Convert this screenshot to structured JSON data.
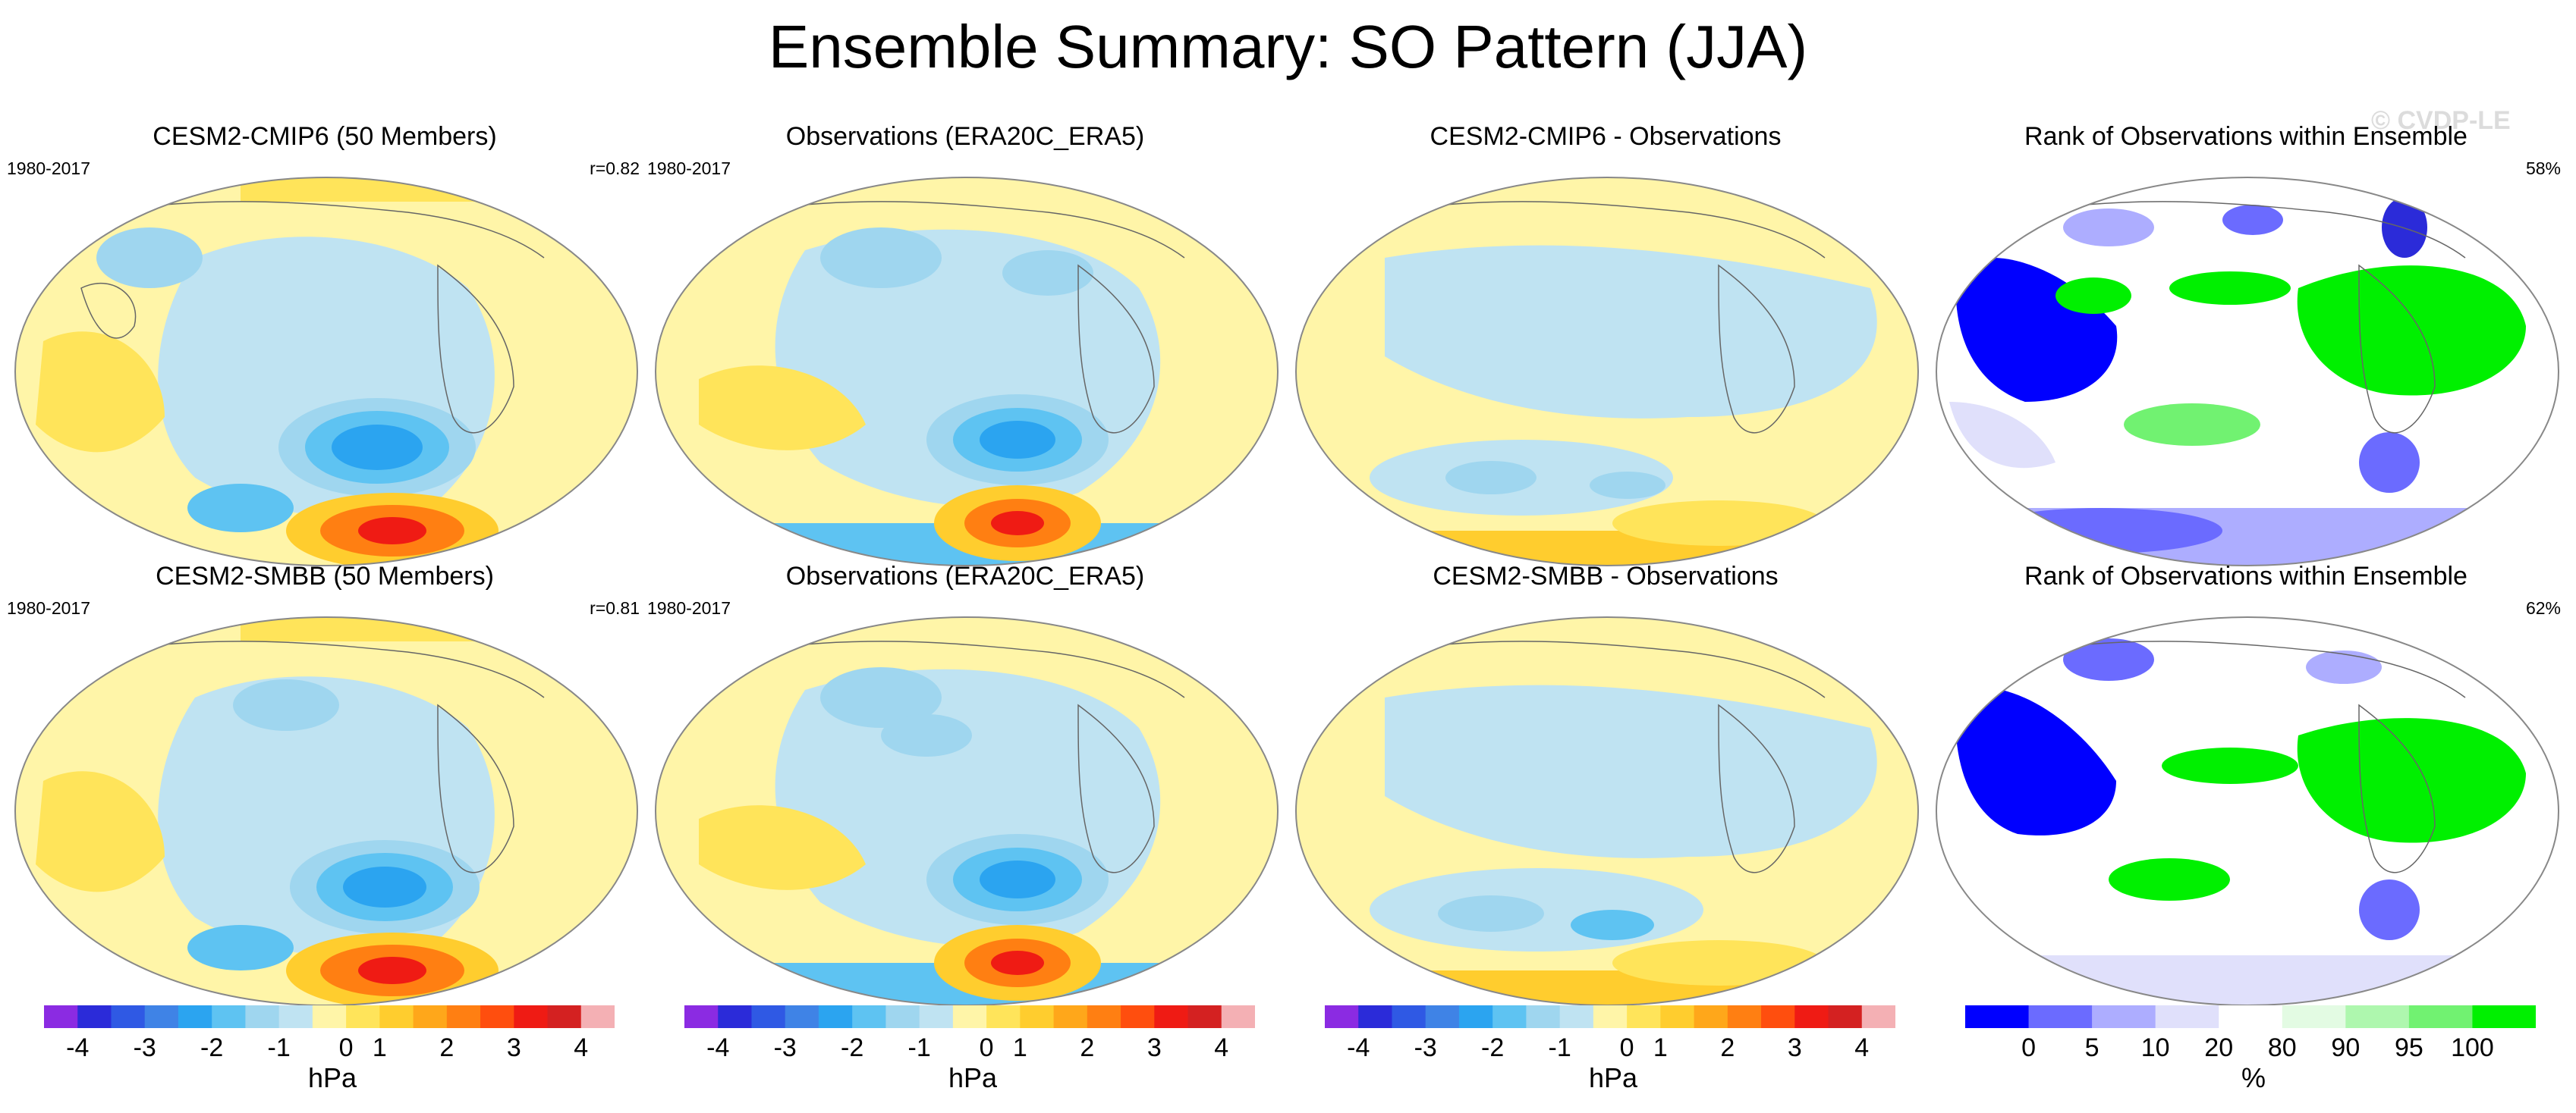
{
  "title": "Ensemble Summary: SO Pattern (JJA)",
  "watermark": "© CVDP-LE",
  "panels": [
    {
      "title": "CESM2-CMIP6 (50 Members)",
      "left_text": "1980-2017",
      "right_text": "r=0.82"
    },
    {
      "title": "Observations (ERA20C_ERA5)",
      "left_text": "1980-2017",
      "right_text": ""
    },
    {
      "title": "CESM2-CMIP6 - Observations",
      "left_text": "",
      "right_text": ""
    },
    {
      "title": "Rank of Observations within Ensemble",
      "left_text": "",
      "right_text": "58%"
    },
    {
      "title": "CESM2-SMBB (50 Members)",
      "left_text": "1980-2017",
      "right_text": "r=0.81"
    },
    {
      "title": "Observations (ERA20C_ERA5)",
      "left_text": "1980-2017",
      "right_text": ""
    },
    {
      "title": "CESM2-SMBB - Observations",
      "left_text": "",
      "right_text": ""
    },
    {
      "title": "Rank of Observations within Ensemble",
      "left_text": "",
      "right_text": "62%"
    }
  ],
  "pressure_colorbar": {
    "unit": "hPa",
    "ticks": [
      "-4",
      "-3",
      "-2",
      "-1",
      "0",
      "1",
      "2",
      "3",
      "4"
    ],
    "colors": [
      "#8b2be2",
      "#2b2bd9",
      "#2f59e4",
      "#3f83e6",
      "#2ba4f0",
      "#5ec3f2",
      "#9fd6ef",
      "#bfe3f2",
      "#fff5a8",
      "#ffe45a",
      "#ffcd2e",
      "#ffa71a",
      "#ff7f12",
      "#ff4e0e",
      "#ef1b14",
      "#d42121",
      "#f4b0b4"
    ]
  },
  "rank_colorbar": {
    "unit": "%",
    "ticks": [
      "0",
      "5",
      "10",
      "20",
      "80",
      "90",
      "95",
      "100"
    ],
    "colors": [
      "#0000ff",
      "#6b6bff",
      "#adadff",
      "#e0e0fb",
      "#ffffff",
      "#e3fbe3",
      "#aef7ae",
      "#71f271",
      "#00f000"
    ]
  }
}
